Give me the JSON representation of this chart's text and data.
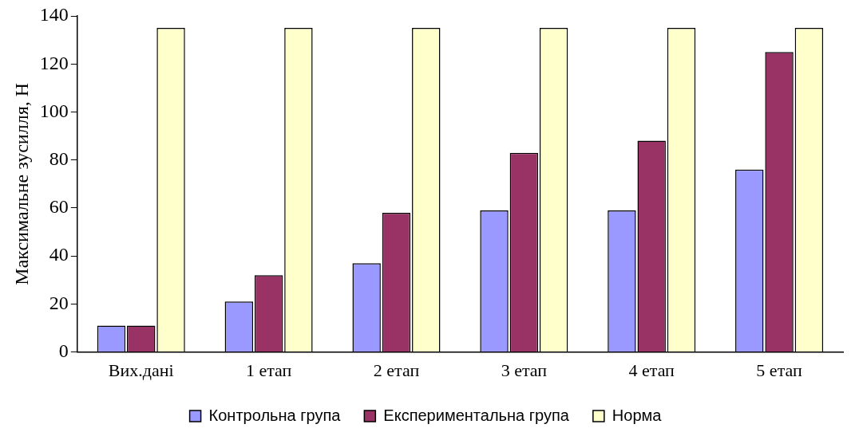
{
  "chart_data": {
    "type": "bar",
    "ylabel": "Максимальне зусилля, Н",
    "categories": [
      "Вих.дані",
      "1 етап",
      "2 етап",
      "3 етап",
      "4 етап",
      "5 етап"
    ],
    "series": [
      {
        "name": "Контрольна група",
        "color": "#9999ff",
        "values": [
          11,
          21,
          37,
          59,
          59,
          76
        ]
      },
      {
        "name": "Експериментальна група",
        "color": "#993366",
        "values": [
          11,
          32,
          58,
          83,
          88,
          125
        ]
      },
      {
        "name": "Норма",
        "color": "#ffffcc",
        "values": [
          135,
          135,
          135,
          135,
          135,
          135
        ]
      }
    ],
    "ylim": [
      0,
      140
    ],
    "yticks": [
      0,
      20,
      40,
      60,
      80,
      100,
      120,
      140
    ],
    "grid": false,
    "legend": "bottom"
  }
}
